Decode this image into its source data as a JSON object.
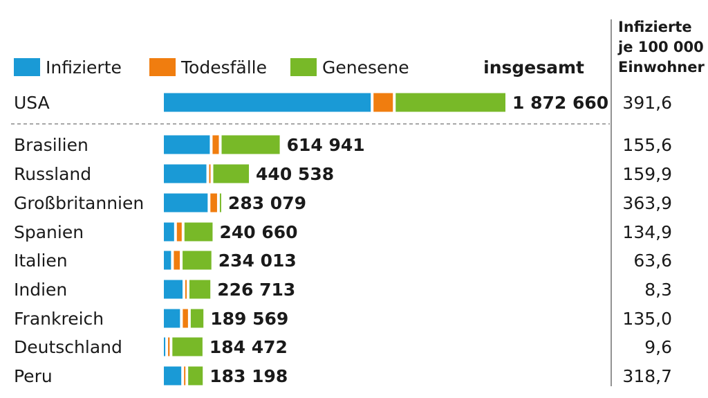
{
  "chart_data": {
    "type": "bar",
    "stacked": true,
    "orientation": "horizontal",
    "legend": [
      {
        "name": "Infizierte",
        "color": "#1a9ad6"
      },
      {
        "name": "Todesfälle",
        "color": "#f07d0f"
      },
      {
        "name": "Genesene",
        "color": "#78b928"
      }
    ],
    "total_header": "insgesamt",
    "per100k_header": [
      "Infizierte",
      "je 100 000",
      "Einwohner"
    ],
    "rows": [
      {
        "country": "USA",
        "infizierte": 1153000,
        "todesfaelle": 108000,
        "genesene": 611660,
        "total": 1872660,
        "total_label": "1 872 660",
        "per100k": "391,6"
      },
      {
        "country": "Brasilien",
        "infizierte": 256000,
        "todesfaelle": 35000,
        "genesene": 323941,
        "total": 614941,
        "total_label": "614 941",
        "per100k": "155,6"
      },
      {
        "country": "Russland",
        "infizierte": 237000,
        "todesfaelle": 5000,
        "genesene": 198538,
        "total": 440538,
        "total_label": "440 538",
        "per100k": "159,9"
      },
      {
        "country": "Großbritannien",
        "infizierte": 244000,
        "todesfaelle": 37000,
        "genesene": 2079,
        "total": 283079,
        "total_label": "283 079",
        "per100k": "363,9"
      },
      {
        "country": "Spanien",
        "infizierte": 57000,
        "todesfaelle": 27000,
        "genesene": 156660,
        "total": 240660,
        "total_label": "240 660",
        "per100k": "134,9"
      },
      {
        "country": "Italien",
        "infizierte": 40000,
        "todesfaelle": 33500,
        "genesene": 160513,
        "total": 234013,
        "total_label": "234 013",
        "per100k": "63,6"
      },
      {
        "country": "Indien",
        "infizierte": 104000,
        "todesfaelle": 6300,
        "genesene": 116413,
        "total": 226713,
        "total_label": "226 713",
        "per100k": "8,3"
      },
      {
        "country": "Frankreich",
        "infizierte": 90000,
        "todesfaelle": 29000,
        "genesene": 70569,
        "total": 189569,
        "total_label": "189 569",
        "per100k": "135,0"
      },
      {
        "country": "Deutschland",
        "infizierte": 8000,
        "todesfaelle": 8600,
        "genesene": 167872,
        "total": 184472,
        "total_label": "184 472",
        "per100k": "9,6"
      },
      {
        "country": "Peru",
        "infizierte": 97000,
        "todesfaelle": 5100,
        "genesene": 81098,
        "total": 183198,
        "total_label": "183 198",
        "per100k": "318,7"
      }
    ]
  }
}
